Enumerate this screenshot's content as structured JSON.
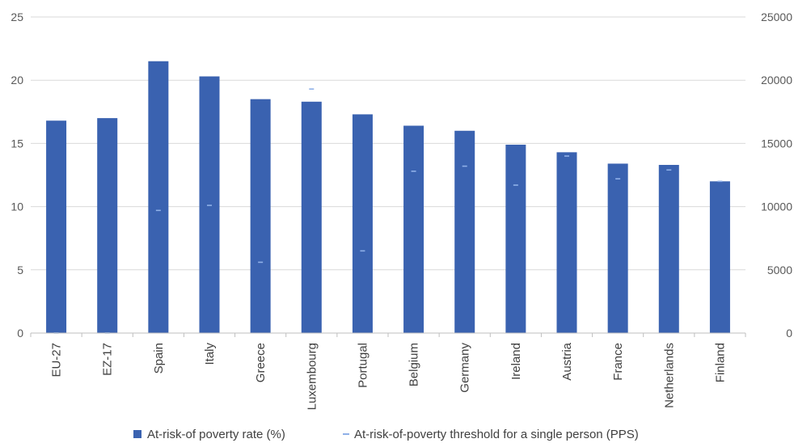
{
  "chart_data": {
    "type": "bar",
    "categories": [
      "EU-27",
      "EZ-17",
      "Spain",
      "Italy",
      "Greece",
      "Luxembourg",
      "Portugal",
      "Belgium",
      "Germany",
      "Ireland",
      "Austria",
      "France",
      "Netherlands",
      "Finland"
    ],
    "series": [
      {
        "name": "At-risk-of poverty rate (%)",
        "type": "bar",
        "axis": "left",
        "color": "#3a62b0",
        "values": [
          16.8,
          17.0,
          21.5,
          20.3,
          18.5,
          18.3,
          17.3,
          16.4,
          16.0,
          14.9,
          14.3,
          13.4,
          13.3,
          12.0
        ]
      },
      {
        "name": "At-risk-of-poverty threshold for a single person (PPS)",
        "type": "marker",
        "axis": "right",
        "color": "#8fb0e8",
        "values": [
          0,
          0,
          9700,
          10100,
          5600,
          19300,
          6500,
          12800,
          13200,
          11700,
          14000,
          12200,
          12900,
          12000
        ]
      }
    ],
    "y_left": {
      "ylim": [
        0,
        25
      ],
      "ticks": [
        "0",
        "5",
        "10",
        "15",
        "20",
        "25"
      ]
    },
    "y_right": {
      "ylim": [
        0,
        25000
      ],
      "ticks": [
        "0",
        "5000",
        "10000",
        "15000",
        "20000",
        "25000"
      ]
    },
    "grid": true,
    "legend_position": "bottom"
  }
}
